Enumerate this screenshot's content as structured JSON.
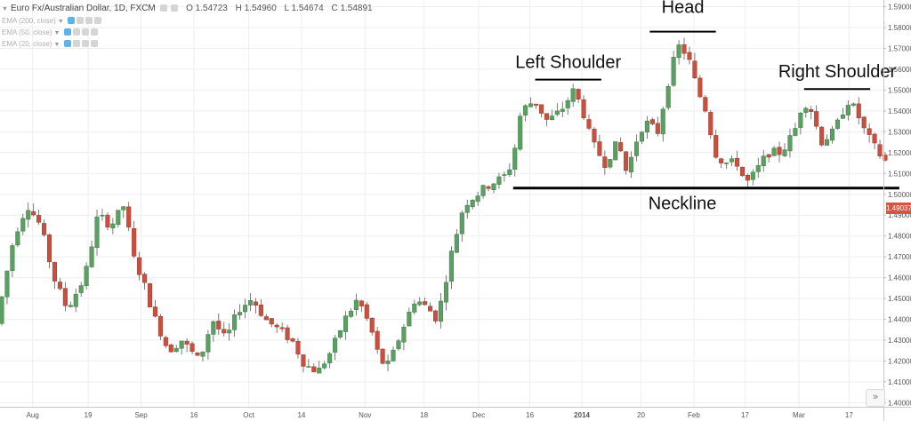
{
  "header": {
    "symbol": "Euro Fx/Australian Dollar, 1D, FXCM",
    "open": "O 1.54723",
    "high": "H 1.54960",
    "low": "L 1.54674",
    "close": "C 1.54891"
  },
  "indicators": [
    {
      "label": "EMA (200, close)"
    },
    {
      "label": "EMA (50, close)"
    },
    {
      "label": "EMA (20, close)"
    }
  ],
  "last_price_label": "1.49037",
  "scroll_button_label": "»",
  "colors": {
    "up": "#5c9f63",
    "down": "#c9503f",
    "accent": "#5fb3e6",
    "price_tag": "#d75442"
  },
  "chart_data": {
    "type": "candlestick",
    "y_axis": {
      "ticks": [
        "1.59000",
        "1.58000",
        "1.57000",
        "1.56000",
        "1.55000",
        "1.54000",
        "1.53000",
        "1.52000",
        "1.51000",
        "1.50000",
        "1.49000",
        "1.48000",
        "1.47000",
        "1.46000",
        "1.45000",
        "1.44000",
        "1.43000",
        "1.42000",
        "1.41000",
        "1.40000"
      ],
      "range": [
        1.397,
        1.594
      ]
    },
    "x_axis": {
      "ticks": [
        "Aug",
        "19",
        "Sep",
        "16",
        "Oct",
        "14",
        "Nov",
        "18",
        "Dec",
        "16",
        "2014",
        "20",
        "Feb",
        "17",
        "Mar",
        "17"
      ],
      "range": [
        0,
        100
      ]
    },
    "annotations": [
      {
        "label": "Left Shoulder",
        "level": 1.555,
        "x_start": 60.5,
        "x_end": 68.0
      },
      {
        "label": "Head",
        "level": 1.578,
        "x_start": 73.5,
        "x_end": 81.0
      },
      {
        "label": "Right Shoulder",
        "level": 1.5505,
        "x_start": 91.0,
        "x_end": 98.5
      },
      {
        "label": "Neckline",
        "level": 1.503,
        "x_start": 58.0,
        "x_end": 101.8
      }
    ],
    "anchors": [
      {
        "x": 0,
        "p": 1.438
      },
      {
        "x": 2,
        "p": 1.48
      },
      {
        "x": 3.5,
        "p": 1.495
      },
      {
        "x": 5,
        "p": 1.485
      },
      {
        "x": 6.5,
        "p": 1.46
      },
      {
        "x": 8,
        "p": 1.445
      },
      {
        "x": 10,
        "p": 1.46
      },
      {
        "x": 11.5,
        "p": 1.49
      },
      {
        "x": 13,
        "p": 1.485
      },
      {
        "x": 14.5,
        "p": 1.495
      },
      {
        "x": 15.5,
        "p": 1.47
      },
      {
        "x": 16.5,
        "p": 1.46
      },
      {
        "x": 18,
        "p": 1.44
      },
      {
        "x": 19.5,
        "p": 1.425
      },
      {
        "x": 21,
        "p": 1.43
      },
      {
        "x": 23,
        "p": 1.42
      },
      {
        "x": 24.5,
        "p": 1.44
      },
      {
        "x": 26,
        "p": 1.43
      },
      {
        "x": 27.5,
        "p": 1.445
      },
      {
        "x": 29,
        "p": 1.45
      },
      {
        "x": 30.5,
        "p": 1.44
      },
      {
        "x": 32,
        "p": 1.435
      },
      {
        "x": 33.5,
        "p": 1.43
      },
      {
        "x": 35,
        "p": 1.418
      },
      {
        "x": 36.5,
        "p": 1.415
      },
      {
        "x": 38,
        "p": 1.425
      },
      {
        "x": 39.5,
        "p": 1.44
      },
      {
        "x": 41,
        "p": 1.45
      },
      {
        "x": 42.5,
        "p": 1.435
      },
      {
        "x": 43.5,
        "p": 1.42
      },
      {
        "x": 44.5,
        "p": 1.418
      },
      {
        "x": 46,
        "p": 1.435
      },
      {
        "x": 47.5,
        "p": 1.45
      },
      {
        "x": 49,
        "p": 1.445
      },
      {
        "x": 50,
        "p": 1.44
      },
      {
        "x": 51.5,
        "p": 1.47
      },
      {
        "x": 53,
        "p": 1.495
      },
      {
        "x": 54.5,
        "p": 1.5
      },
      {
        "x": 56,
        "p": 1.505
      },
      {
        "x": 57.5,
        "p": 1.508
      },
      {
        "x": 58.5,
        "p": 1.515
      },
      {
        "x": 59.5,
        "p": 1.54
      },
      {
        "x": 61,
        "p": 1.545
      },
      {
        "x": 62.5,
        "p": 1.535
      },
      {
        "x": 64,
        "p": 1.54
      },
      {
        "x": 65.5,
        "p": 1.55
      },
      {
        "x": 66.5,
        "p": 1.54
      },
      {
        "x": 67.5,
        "p": 1.525
      },
      {
        "x": 69,
        "p": 1.515
      },
      {
        "x": 70.5,
        "p": 1.525
      },
      {
        "x": 71.5,
        "p": 1.51
      },
      {
        "x": 72.5,
        "p": 1.525
      },
      {
        "x": 73.5,
        "p": 1.535
      },
      {
        "x": 75,
        "p": 1.53
      },
      {
        "x": 76.5,
        "p": 1.56
      },
      {
        "x": 77.5,
        "p": 1.572
      },
      {
        "x": 78.5,
        "p": 1.565
      },
      {
        "x": 79.5,
        "p": 1.55
      },
      {
        "x": 80.5,
        "p": 1.54
      },
      {
        "x": 81.5,
        "p": 1.52
      },
      {
        "x": 82.5,
        "p": 1.515
      },
      {
        "x": 84,
        "p": 1.515
      },
      {
        "x": 85,
        "p": 1.505
      },
      {
        "x": 86,
        "p": 1.51
      },
      {
        "x": 87.5,
        "p": 1.52
      },
      {
        "x": 89,
        "p": 1.52
      },
      {
        "x": 90.5,
        "p": 1.53
      },
      {
        "x": 91.5,
        "p": 1.545
      },
      {
        "x": 92.5,
        "p": 1.54
      },
      {
        "x": 93.5,
        "p": 1.525
      },
      {
        "x": 95,
        "p": 1.53
      },
      {
        "x": 96.5,
        "p": 1.545
      },
      {
        "x": 97.5,
        "p": 1.54
      },
      {
        "x": 98.5,
        "p": 1.53
      },
      {
        "x": 100,
        "p": 1.52
      },
      {
        "x": 101,
        "p": 1.515
      },
      {
        "x": 102,
        "p": 1.4904
      }
    ]
  }
}
